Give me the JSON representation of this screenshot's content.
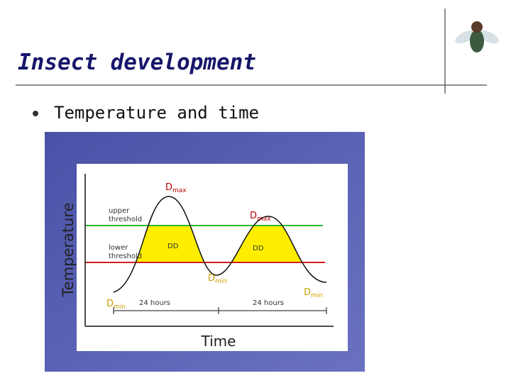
{
  "slide": {
    "title": "Insect development",
    "bullets": [
      "Temperature and time"
    ],
    "diagram": {
      "y_axis_label": "Temperature",
      "x_axis_label": "Time",
      "upper_threshold": "upper threshold",
      "lower_threshold": "lower threshold",
      "degree_days": [
        "DD",
        "DD"
      ],
      "d_max": [
        {
          "main": "D",
          "sub": "max"
        },
        {
          "main": "D",
          "sub": "max"
        }
      ],
      "d_min": [
        {
          "main": "D",
          "sub": "min"
        },
        {
          "main": "D",
          "sub": "min"
        },
        {
          "main": "D",
          "sub": "min"
        }
      ],
      "period": [
        "24 hours",
        "24 hours"
      ]
    }
  }
}
